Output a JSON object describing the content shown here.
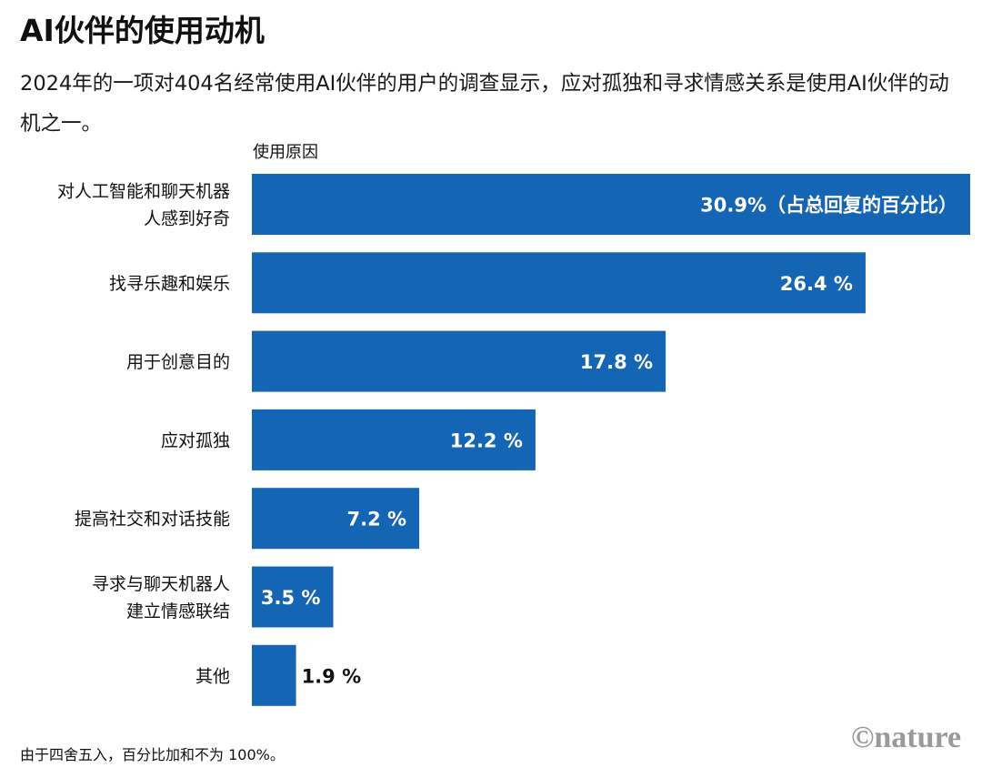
{
  "title": "AI伙伴的使用动机",
  "subtitle": "2024年的一项对404名经常使用AI伙伴的用户的调查显示，应对孤独和寻求情感关系是使用AI伙伴的动机之一。",
  "footnote": "由于四舍五入，百分比加和不为 100%。",
  "logo_text": "©nature",
  "colors": {
    "bar": "#1565b5",
    "label_inside": "#ffffff",
    "label_outside": "#111111"
  },
  "chart_data": {
    "type": "bar",
    "orientation": "horizontal",
    "ylabel": "使用原因",
    "categories": [
      [
        "对人工智能和聊天机器",
        "人感到好奇"
      ],
      [
        "找寻乐趣和娱乐"
      ],
      [
        "用于创意目的"
      ],
      [
        "应对孤独"
      ],
      [
        "提高社交和对话技能"
      ],
      [
        "寻求与聊天机器人",
        "建立情感联结"
      ],
      [
        "其他"
      ]
    ],
    "values": [
      30.9,
      26.4,
      17.8,
      12.2,
      7.2,
      3.5,
      1.9
    ],
    "value_labels": [
      "30.9%（占总回复的百分比）",
      "26.4 %",
      "17.8 %",
      "12.2 %",
      "7.2 %",
      "3.5 %",
      "1.9 %"
    ],
    "xlim": [
      0,
      30.9
    ],
    "grid": false,
    "legend": "none"
  }
}
